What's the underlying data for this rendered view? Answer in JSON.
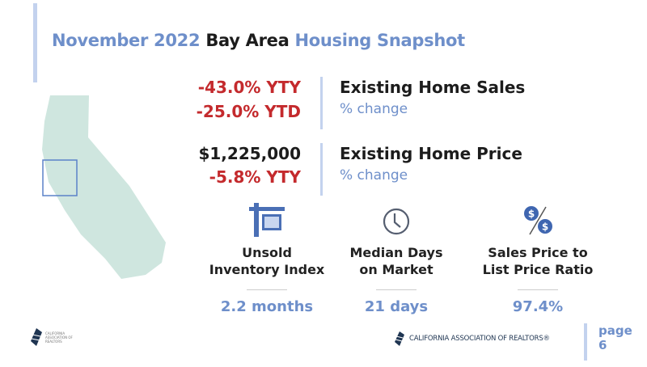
{
  "title": {
    "part1": "November 2022",
    "part2": "Bay Area",
    "part3": "Housing Snapshot"
  },
  "sales": {
    "stat1": "-43.0% YTY",
    "stat2": "-25.0% YTD",
    "heading": "Existing Home Sales",
    "sub": "% change"
  },
  "price": {
    "stat1": "$1,225,000",
    "stat2": "-5.8% YTY",
    "heading": "Existing Home Price",
    "sub": "% change"
  },
  "metrics": [
    {
      "icon": "for-sale-sign-icon",
      "label1": "Unsold",
      "label2": "Inventory Index",
      "value": "2.2 months"
    },
    {
      "icon": "clock-icon",
      "label1": "Median Days",
      "label2": "on Market",
      "value": "21 days"
    },
    {
      "icon": "dollar-percent-icon",
      "label1": "Sales Price to",
      "label2": "List Price Ratio",
      "value": "97.4%"
    }
  ],
  "footer": {
    "org": "CALIFORNIA ASSOCIATION OF REALTORS®",
    "small_logo_text": "CALIFORNIA ASSOCIATION OF REALTORS",
    "page_label": "page",
    "page_number": "6"
  },
  "colors": {
    "accent_blue": "#6e8fca",
    "negative_red": "#c42a2d",
    "map_fill": "#cfe6df"
  }
}
